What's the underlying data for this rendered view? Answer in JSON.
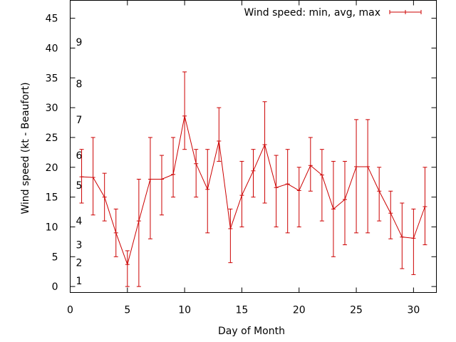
{
  "chart_data": {
    "type": "line",
    "xlabel": "Day of Month",
    "ylabel": "Wind speed (kt - Beaufort)",
    "xlim": [
      0,
      32
    ],
    "ylim": [
      -1,
      48
    ],
    "xticks": [
      0,
      5,
      10,
      15,
      20,
      25,
      30
    ],
    "yticks": [
      0,
      5,
      10,
      15,
      20,
      25,
      30,
      35,
      40,
      45
    ],
    "legend_position": "top-right",
    "grid": false,
    "color": "#cc0000",
    "legend": {
      "label": "Wind speed: min, avg, max"
    },
    "beaufort_labels": [
      {
        "label": "1",
        "at": 1
      },
      {
        "label": "2",
        "at": 4
      },
      {
        "label": "3",
        "at": 7
      },
      {
        "label": "4",
        "at": 11
      },
      {
        "label": "5",
        "at": 17
      },
      {
        "label": "6",
        "at": 22
      },
      {
        "label": "7",
        "at": 28
      },
      {
        "label": "8",
        "at": 34
      },
      {
        "label": "9",
        "at": 41
      }
    ],
    "series": [
      {
        "name": "Wind speed: min, avg, max",
        "points": [
          {
            "x": 1,
            "min": 14,
            "avg": 18.4,
            "max": 23
          },
          {
            "x": 2,
            "min": 12,
            "avg": 18.3,
            "max": 25
          },
          {
            "x": 3,
            "min": 11,
            "avg": 15,
            "max": 19
          },
          {
            "x": 4,
            "min": 5,
            "avg": 9,
            "max": 13
          },
          {
            "x": 5,
            "min": 0,
            "avg": 3.7,
            "max": 6
          },
          {
            "x": 6,
            "min": 0,
            "avg": 11,
            "max": 18
          },
          {
            "x": 7,
            "min": 8,
            "avg": 18,
            "max": 25
          },
          {
            "x": 8,
            "min": 12,
            "avg": 18,
            "max": 22
          },
          {
            "x": 9,
            "min": 15,
            "avg": 18.8,
            "max": 25
          },
          {
            "x": 10,
            "min": 23,
            "avg": 28.6,
            "max": 36
          },
          {
            "x": 11,
            "min": 15,
            "avg": 20.6,
            "max": 23
          },
          {
            "x": 12,
            "min": 9,
            "avg": 16.3,
            "max": 23
          },
          {
            "x": 13,
            "min": 21,
            "avg": 24.4,
            "max": 30
          },
          {
            "x": 14,
            "min": 4,
            "avg": 9.7,
            "max": 13
          },
          {
            "x": 15,
            "min": 10,
            "avg": 15.3,
            "max": 21
          },
          {
            "x": 16,
            "min": 15,
            "avg": 19.4,
            "max": 23
          },
          {
            "x": 17,
            "min": 14,
            "avg": 23.8,
            "max": 31
          },
          {
            "x": 18,
            "min": 10,
            "avg": 16.6,
            "max": 22
          },
          {
            "x": 19,
            "min": 9,
            "avg": 17.2,
            "max": 23
          },
          {
            "x": 20,
            "min": 10,
            "avg": 16.1,
            "max": 20
          },
          {
            "x": 21,
            "min": 16,
            "avg": 20.3,
            "max": 25
          },
          {
            "x": 22,
            "min": 11,
            "avg": 18.7,
            "max": 23
          },
          {
            "x": 23,
            "min": 5,
            "avg": 13,
            "max": 21
          },
          {
            "x": 24,
            "min": 7,
            "avg": 14.6,
            "max": 21
          },
          {
            "x": 25,
            "min": 9,
            "avg": 20.1,
            "max": 28
          },
          {
            "x": 26,
            "min": 9,
            "avg": 20.1,
            "max": 28
          },
          {
            "x": 27,
            "min": 11,
            "avg": 16,
            "max": 20
          },
          {
            "x": 28,
            "min": 8,
            "avg": 12.3,
            "max": 16
          },
          {
            "x": 29,
            "min": 3,
            "avg": 8.3,
            "max": 14
          },
          {
            "x": 30,
            "min": 2,
            "avg": 8.1,
            "max": 13
          },
          {
            "x": 31,
            "min": 7,
            "avg": 13.4,
            "max": 20
          }
        ]
      }
    ]
  }
}
